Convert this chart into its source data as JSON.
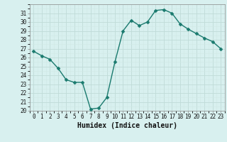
{
  "x": [
    0,
    1,
    2,
    3,
    4,
    5,
    6,
    7,
    8,
    9,
    10,
    11,
    12,
    13,
    14,
    15,
    16,
    17,
    18,
    19,
    20,
    21,
    22,
    23
  ],
  "y": [
    26.7,
    26.2,
    25.8,
    24.8,
    23.5,
    23.2,
    23.2,
    20.2,
    20.3,
    21.5,
    25.5,
    29.0,
    30.2,
    29.6,
    30.0,
    31.3,
    31.4,
    31.0,
    29.8,
    29.2,
    28.7,
    28.2,
    27.8,
    27.0
  ],
  "line_color": "#1a7a6e",
  "marker": "D",
  "markersize": 2.5,
  "linewidth": 1.0,
  "background_color": "#d8f0ef",
  "grid_major_color": "#c0dbd8",
  "grid_minor_color": "#d0e8e5",
  "xlabel": "Humidex (Indice chaleur)",
  "ylim": [
    20,
    32
  ],
  "xlim": [
    -0.5,
    23.5
  ],
  "yticks": [
    20,
    21,
    22,
    23,
    24,
    25,
    26,
    27,
    28,
    29,
    30,
    31
  ],
  "xticks": [
    0,
    1,
    2,
    3,
    4,
    5,
    6,
    7,
    8,
    9,
    10,
    11,
    12,
    13,
    14,
    15,
    16,
    17,
    18,
    19,
    20,
    21,
    22,
    23
  ],
  "tick_fontsize": 5.5,
  "xlabel_fontsize": 7.0,
  "spine_color": "#888888"
}
